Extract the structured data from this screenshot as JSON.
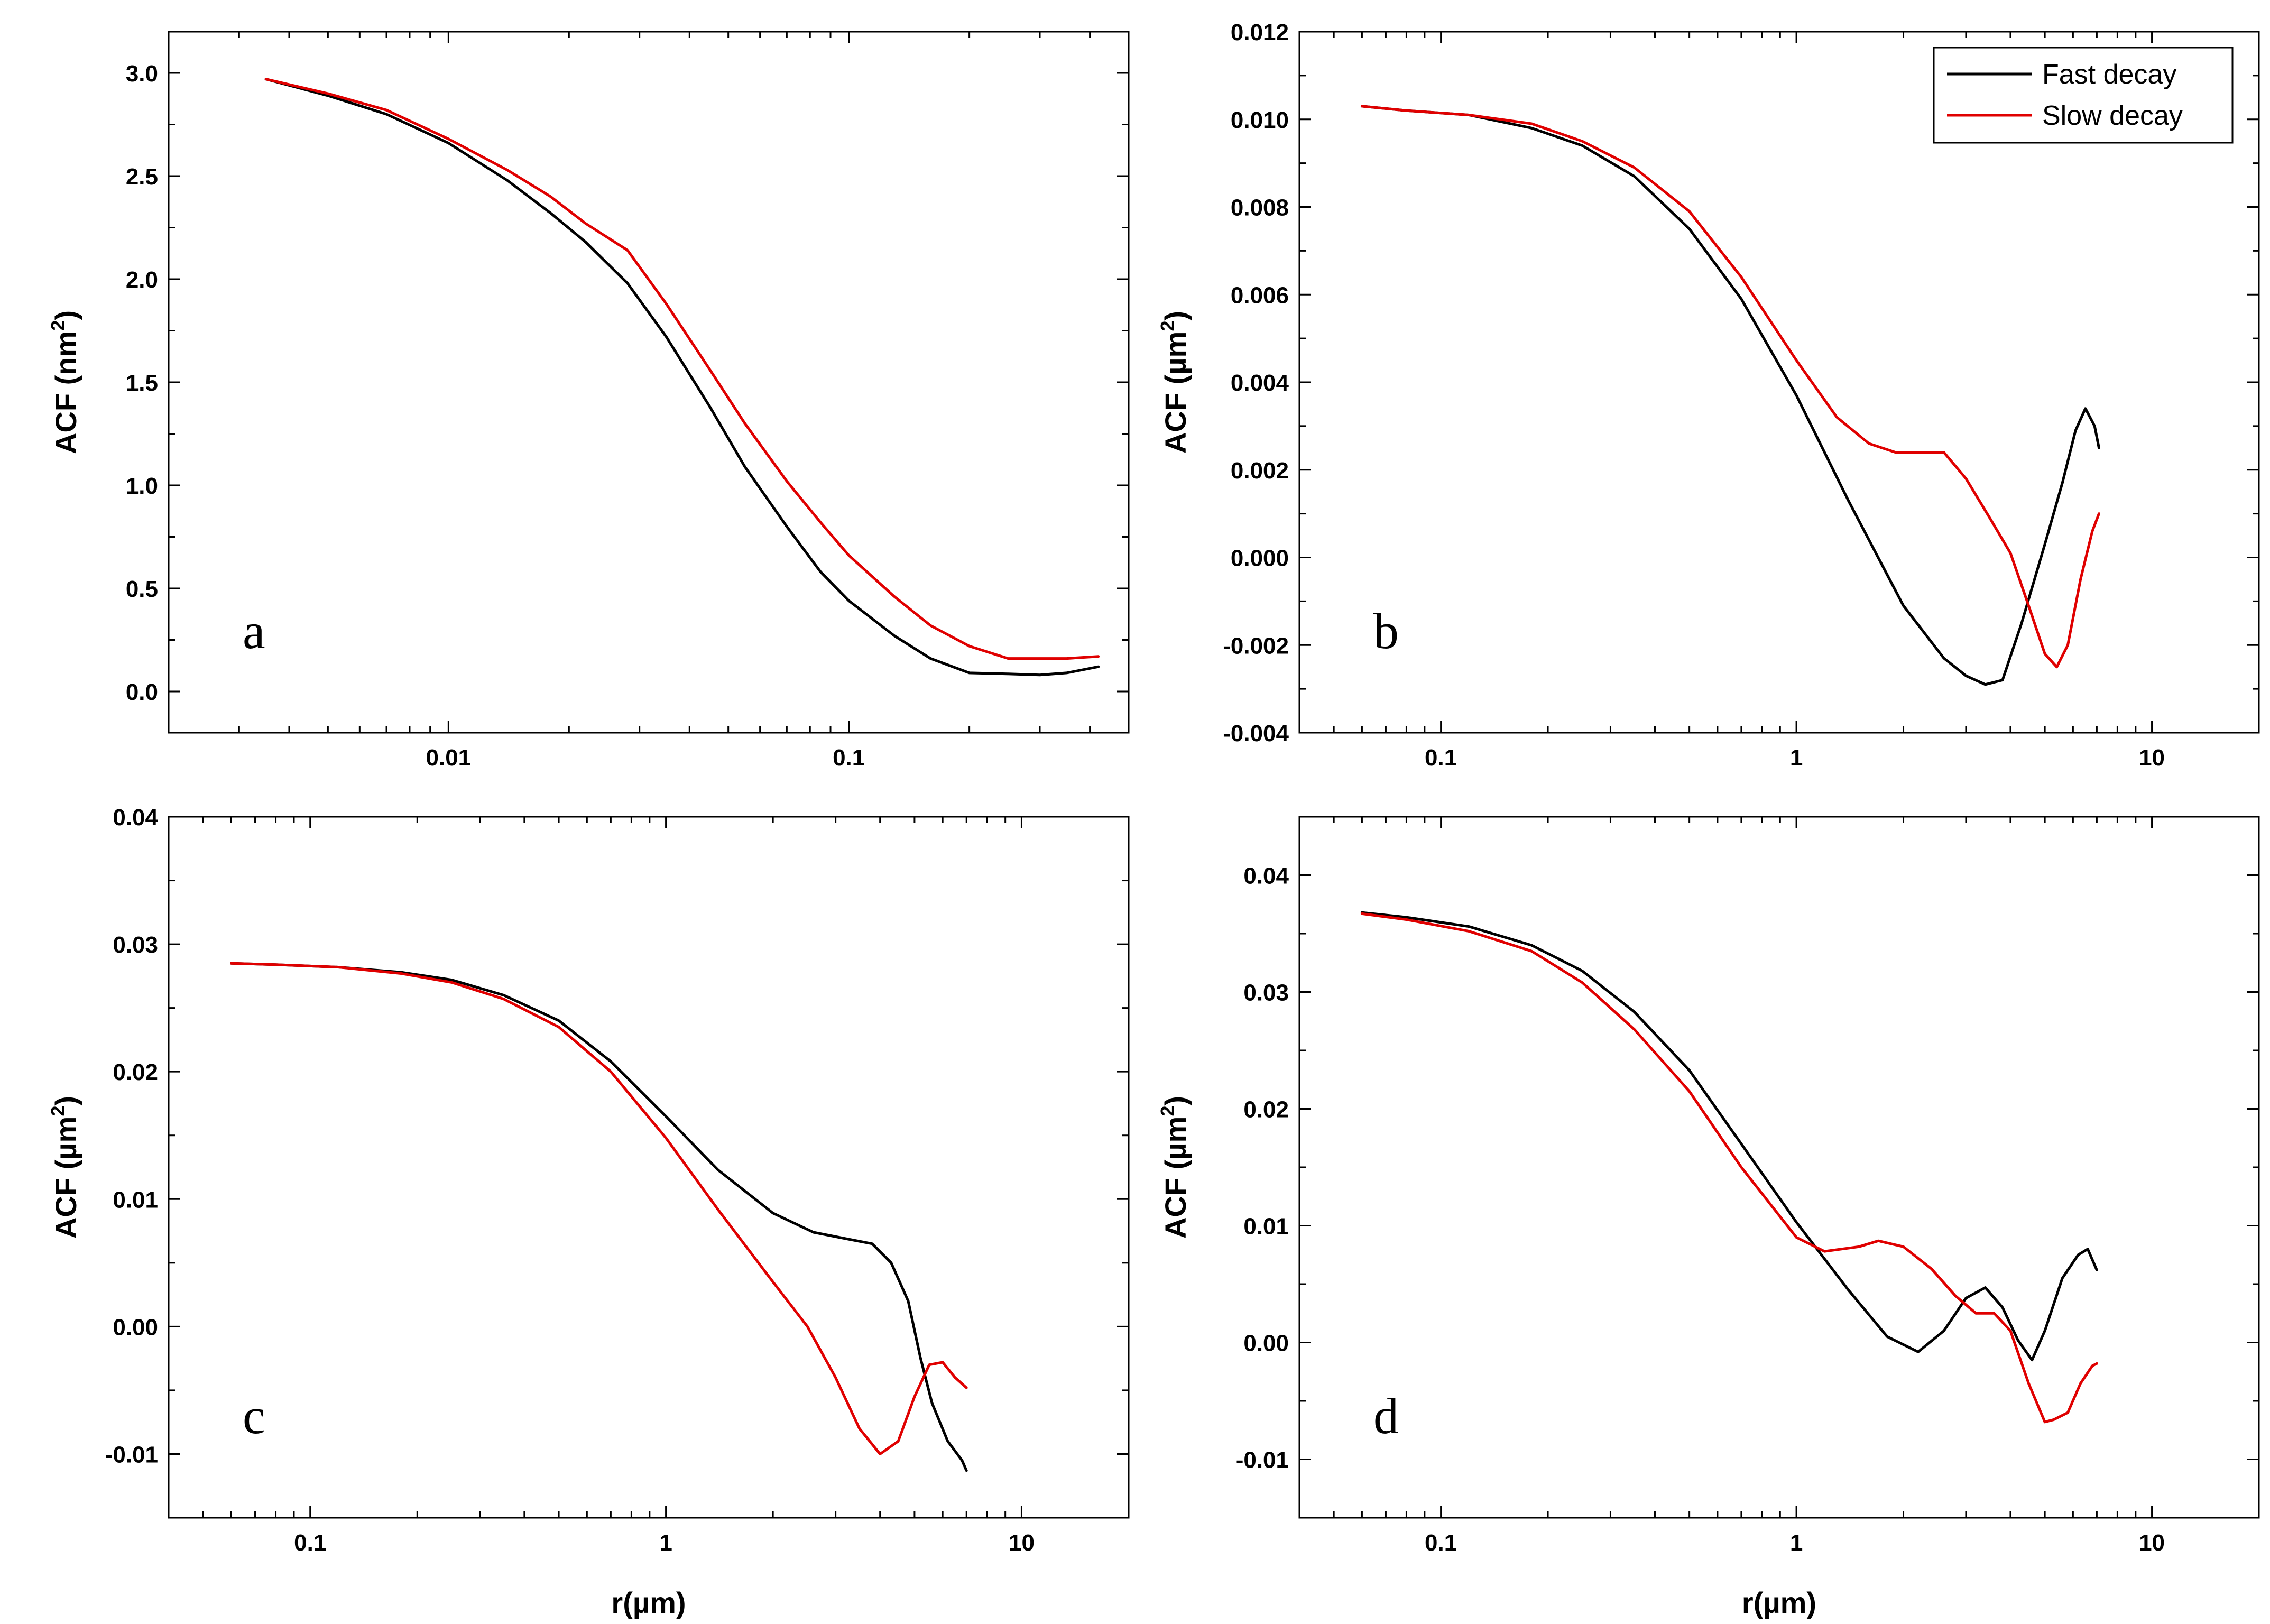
{
  "colors": {
    "fast": "#000000",
    "slow": "#e00000"
  },
  "chart_data": [
    {
      "panel": "a",
      "type": "line",
      "xscale": "log",
      "xlim": [
        0.002,
        0.5
      ],
      "xticks": [
        0.01,
        0.1
      ],
      "xtick_labels": [
        "0.01",
        "0.1"
      ],
      "ylim": [
        -0.2,
        3.2
      ],
      "yticks": [
        0.0,
        0.5,
        1.0,
        1.5,
        2.0,
        2.5,
        3.0
      ],
      "ytick_labels": [
        "0.0",
        "0.5",
        "1.0",
        "1.5",
        "2.0",
        "2.5",
        "3.0"
      ],
      "ylabel": "ACF (nm",
      "ylabel_sup": "2",
      "ylabel_close": ")",
      "xlabel": "",
      "letter": "a",
      "legend": null,
      "series": [
        {
          "name": "Fast decay",
          "color": "#000000",
          "x": [
            0.0035,
            0.005,
            0.007,
            0.01,
            0.014,
            0.018,
            0.022,
            0.028,
            0.035,
            0.045,
            0.055,
            0.07,
            0.085,
            0.1,
            0.13,
            0.16,
            0.2,
            0.25,
            0.3,
            0.35,
            0.42
          ],
          "y": [
            2.97,
            2.89,
            2.8,
            2.66,
            2.48,
            2.32,
            2.18,
            1.98,
            1.72,
            1.38,
            1.09,
            0.8,
            0.58,
            0.44,
            0.27,
            0.16,
            0.09,
            0.085,
            0.08,
            0.09,
            0.12
          ]
        },
        {
          "name": "Slow decay",
          "color": "#e00000",
          "x": [
            0.0035,
            0.005,
            0.007,
            0.01,
            0.014,
            0.018,
            0.022,
            0.028,
            0.035,
            0.045,
            0.055,
            0.07,
            0.085,
            0.1,
            0.13,
            0.16,
            0.2,
            0.25,
            0.3,
            0.35,
            0.42
          ],
          "y": [
            2.97,
            2.9,
            2.82,
            2.68,
            2.53,
            2.4,
            2.27,
            2.14,
            1.88,
            1.56,
            1.3,
            1.02,
            0.82,
            0.66,
            0.46,
            0.32,
            0.22,
            0.16,
            0.16,
            0.16,
            0.17
          ]
        }
      ]
    },
    {
      "panel": "b",
      "type": "line",
      "xscale": "log",
      "xlim": [
        0.04,
        20
      ],
      "xticks": [
        0.1,
        1,
        10
      ],
      "xtick_labels": [
        "0.1",
        "1",
        "10"
      ],
      "ylim": [
        -0.004,
        0.012
      ],
      "yticks": [
        -0.004,
        -0.002,
        0.0,
        0.002,
        0.004,
        0.006,
        0.008,
        0.01,
        0.012
      ],
      "ytick_labels": [
        "-0.004",
        "-0.002",
        "0.000",
        "0.002",
        "0.004",
        "0.006",
        "0.008",
        "0.010",
        "0.012"
      ],
      "ylabel": "ACF (µm",
      "ylabel_sup": "2",
      "ylabel_close": ")",
      "xlabel": "",
      "letter": "b",
      "legend": {
        "entries": [
          "Fast decay",
          "Slow decay"
        ],
        "position": "top-right"
      },
      "series": [
        {
          "name": "Fast decay",
          "color": "#000000",
          "x": [
            0.06,
            0.08,
            0.12,
            0.18,
            0.25,
            0.35,
            0.5,
            0.7,
            1.0,
            1.4,
            2.0,
            2.6,
            3.0,
            3.4,
            3.8,
            4.3,
            5.0,
            5.6,
            6.1,
            6.5,
            6.9,
            7.1
          ],
          "y": [
            0.0103,
            0.0102,
            0.0101,
            0.0098,
            0.0094,
            0.0087,
            0.0075,
            0.0059,
            0.0037,
            0.0013,
            -0.0011,
            -0.0023,
            -0.0027,
            -0.0029,
            -0.0028,
            -0.0015,
            0.0003,
            0.0017,
            0.0029,
            0.0034,
            0.003,
            0.0025
          ]
        },
        {
          "name": "Slow decay",
          "color": "#e00000",
          "x": [
            0.06,
            0.08,
            0.12,
            0.18,
            0.25,
            0.35,
            0.5,
            0.7,
            1.0,
            1.3,
            1.6,
            1.9,
            2.2,
            2.6,
            3.0,
            3.5,
            4.0,
            4.5,
            5.0,
            5.4,
            5.8,
            6.3,
            6.8,
            7.1
          ],
          "y": [
            0.0103,
            0.0102,
            0.0101,
            0.0099,
            0.0095,
            0.0089,
            0.0079,
            0.0064,
            0.0045,
            0.0032,
            0.0026,
            0.0024,
            0.0024,
            0.0024,
            0.0018,
            0.0009,
            0.0001,
            -0.0011,
            -0.0022,
            -0.0025,
            -0.002,
            -0.0005,
            0.0006,
            0.001
          ]
        }
      ]
    },
    {
      "panel": "c",
      "type": "line",
      "xscale": "log",
      "xlim": [
        0.04,
        20
      ],
      "xticks": [
        0.1,
        1,
        10
      ],
      "xtick_labels": [
        "0.1",
        "1",
        "10"
      ],
      "ylim": [
        -0.015,
        0.04
      ],
      "yticks": [
        -0.01,
        0.0,
        0.01,
        0.02,
        0.03,
        0.04
      ],
      "ytick_labels": [
        "-0.01",
        "0.00",
        "0.01",
        "0.02",
        "0.03",
        "0.04"
      ],
      "ylabel": "ACF (µm",
      "ylabel_sup": "2",
      "ylabel_close": ")",
      "xlabel": "r(µm)",
      "letter": "c",
      "legend": null,
      "series": [
        {
          "name": "Fast decay",
          "color": "#000000",
          "x": [
            0.06,
            0.08,
            0.12,
            0.18,
            0.25,
            0.35,
            0.5,
            0.7,
            1.0,
            1.4,
            2.0,
            2.6,
            3.2,
            3.8,
            4.3,
            4.8,
            5.2,
            5.6,
            6.2,
            6.8,
            7.0
          ],
          "y": [
            0.0285,
            0.0284,
            0.0282,
            0.0278,
            0.0272,
            0.026,
            0.024,
            0.0208,
            0.0165,
            0.0123,
            0.0089,
            0.0074,
            0.0069,
            0.0065,
            0.005,
            0.002,
            -0.0025,
            -0.006,
            -0.009,
            -0.0105,
            -0.0113
          ]
        },
        {
          "name": "Slow decay",
          "color": "#e00000",
          "x": [
            0.06,
            0.08,
            0.12,
            0.18,
            0.25,
            0.35,
            0.5,
            0.7,
            1.0,
            1.4,
            2.0,
            2.5,
            3.0,
            3.5,
            4.0,
            4.5,
            5.0,
            5.5,
            6.0,
            6.5,
            7.0
          ],
          "y": [
            0.0285,
            0.0284,
            0.0282,
            0.0277,
            0.027,
            0.0257,
            0.0235,
            0.02,
            0.0148,
            0.0092,
            0.0035,
            0.0,
            -0.004,
            -0.008,
            -0.01,
            -0.009,
            -0.0055,
            -0.003,
            -0.0028,
            -0.004,
            -0.0048
          ]
        }
      ]
    },
    {
      "panel": "d",
      "type": "line",
      "xscale": "log",
      "xlim": [
        0.04,
        20
      ],
      "xticks": [
        0.1,
        1,
        10
      ],
      "xtick_labels": [
        "0.1",
        "1",
        "10"
      ],
      "ylim": [
        -0.015,
        0.045
      ],
      "yticks": [
        -0.01,
        0.0,
        0.01,
        0.02,
        0.03,
        0.04
      ],
      "ytick_labels": [
        "-0.01",
        "0.00",
        "0.01",
        "0.02",
        "0.03",
        "0.04"
      ],
      "ylabel": "ACF (µm",
      "ylabel_sup": "2",
      "ylabel_close": ")",
      "xlabel": "r(µm)",
      "letter": "d",
      "legend": null,
      "series": [
        {
          "name": "Fast decay",
          "color": "#000000",
          "x": [
            0.06,
            0.08,
            0.12,
            0.18,
            0.25,
            0.35,
            0.5,
            0.7,
            1.0,
            1.4,
            1.8,
            2.2,
            2.6,
            3.0,
            3.4,
            3.8,
            4.2,
            4.6,
            5.0,
            5.6,
            6.2,
            6.6,
            7.0
          ],
          "y": [
            0.0368,
            0.0364,
            0.0356,
            0.034,
            0.0318,
            0.0283,
            0.0233,
            0.017,
            0.0103,
            0.0045,
            0.0005,
            -0.0008,
            0.001,
            0.0038,
            0.0047,
            0.003,
            0.0002,
            -0.0015,
            0.001,
            0.0055,
            0.0075,
            0.008,
            0.0062
          ]
        },
        {
          "name": "Slow decay",
          "color": "#e00000",
          "x": [
            0.06,
            0.08,
            0.12,
            0.18,
            0.25,
            0.35,
            0.5,
            0.7,
            1.0,
            1.2,
            1.5,
            1.7,
            2.0,
            2.4,
            2.8,
            3.2,
            3.6,
            4.0,
            4.5,
            5.0,
            5.3,
            5.8,
            6.3,
            6.8,
            7.0
          ],
          "y": [
            0.0367,
            0.0362,
            0.0352,
            0.0335,
            0.0308,
            0.0268,
            0.0215,
            0.015,
            0.009,
            0.0078,
            0.0082,
            0.0087,
            0.0082,
            0.0063,
            0.004,
            0.0025,
            0.0025,
            0.001,
            -0.0035,
            -0.0068,
            -0.0066,
            -0.006,
            -0.0035,
            -0.002,
            -0.0018
          ]
        }
      ]
    }
  ]
}
